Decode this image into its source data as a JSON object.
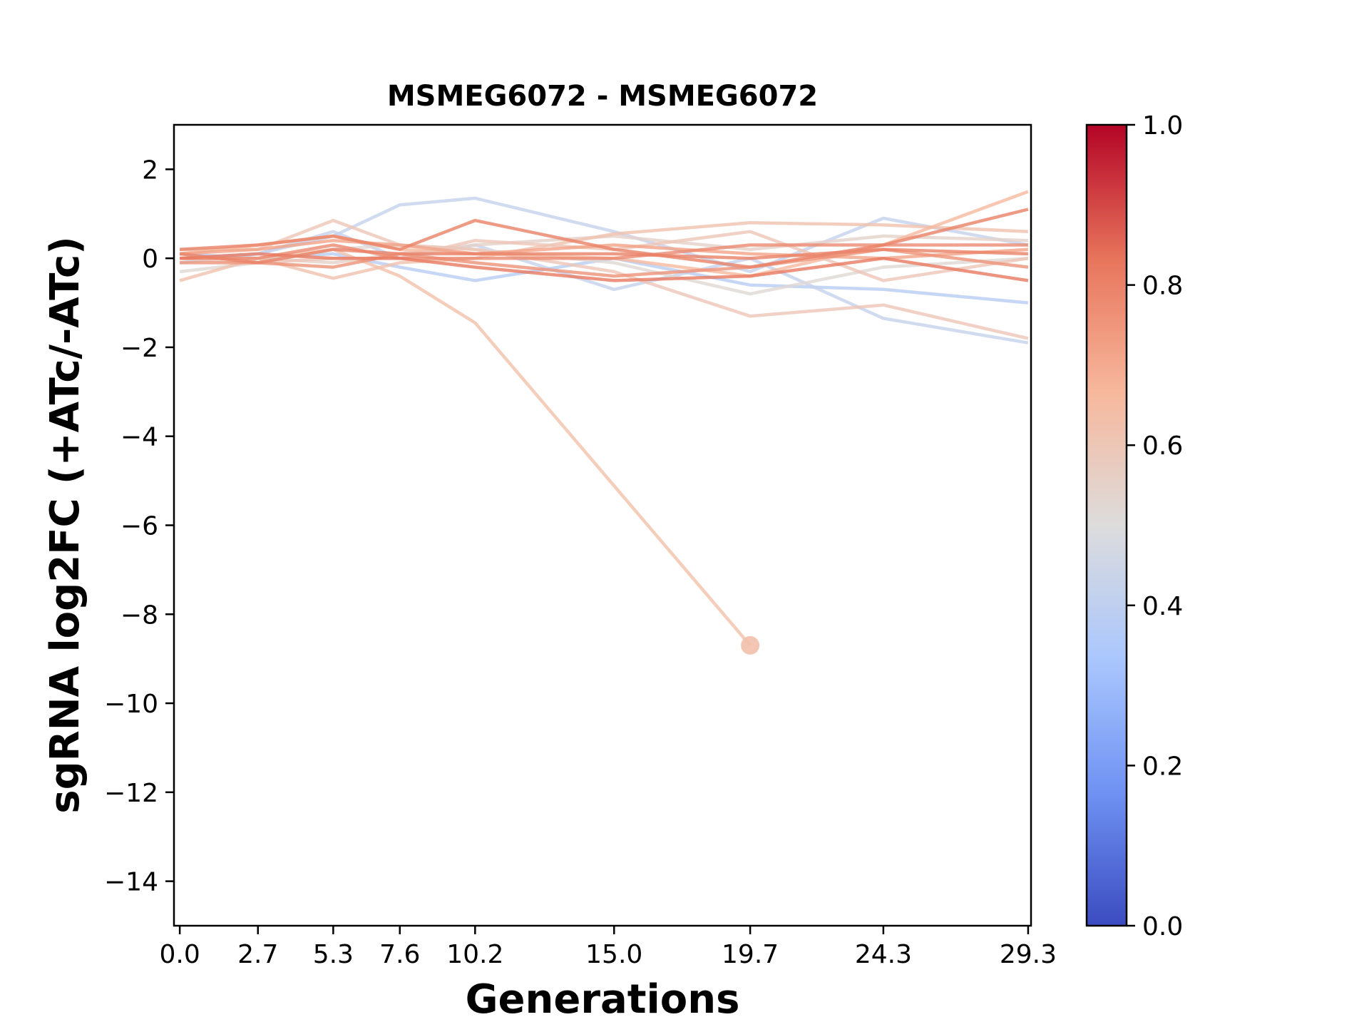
{
  "chart_data": {
    "type": "line",
    "title": "MSMEG6072 - MSMEG6072",
    "xlabel": "Generations",
    "ylabel": "sgRNA log2FC (+ATc/-ATc)",
    "x": [
      0.0,
      2.7,
      5.3,
      7.6,
      10.2,
      15.0,
      19.7,
      24.3,
      29.3
    ],
    "x_tick_labels": [
      "0.0",
      "2.7",
      "5.3",
      "7.6",
      "10.2",
      "15.0",
      "19.7",
      "24.3",
      "29.3"
    ],
    "xlim": [
      -0.2,
      29.4
    ],
    "ylim": [
      -15,
      3
    ],
    "y_ticks": [
      2,
      0,
      -2,
      -4,
      -6,
      -8,
      -10,
      -12,
      -14
    ],
    "y_tick_labels": [
      "2",
      "0",
      "−2",
      "−4",
      "−6",
      "−8",
      "−10",
      "−12",
      "−14"
    ],
    "grid": false,
    "colorbar": {
      "range": [
        0.0,
        1.0
      ],
      "ticks": [
        0.0,
        0.2,
        0.4,
        0.6,
        0.8,
        1.0
      ],
      "tick_labels": [
        "0.0",
        "0.2",
        "0.4",
        "0.6",
        "0.8",
        "1.0"
      ],
      "colormap": "coolwarm",
      "stops": [
        "#3b4cc0",
        "#6f92f3",
        "#aac7fd",
        "#dddcdc",
        "#f7b89c",
        "#e7745b",
        "#b40426"
      ]
    },
    "series": [
      {
        "color_value": 0.42,
        "values": [
          0.0,
          0.1,
          0.5,
          1.2,
          1.35,
          0.6,
          -0.3,
          0.9,
          0.3
        ]
      },
      {
        "color_value": 0.38,
        "values": [
          0.1,
          0.0,
          0.1,
          -0.2,
          -0.5,
          0.0,
          -0.6,
          -0.7,
          -1.0
        ]
      },
      {
        "color_value": 0.42,
        "values": [
          -0.1,
          0.1,
          0.6,
          0.0,
          0.3,
          -0.7,
          0.0,
          -1.35,
          -1.9
        ]
      },
      {
        "color_value": 0.52,
        "values": [
          -0.3,
          -0.1,
          0.2,
          0.3,
          0.2,
          -0.1,
          -0.8,
          -0.2,
          0.0
        ]
      },
      {
        "color_value": 0.55,
        "values": [
          0.0,
          0.0,
          -0.1,
          0.1,
          0.3,
          0.5,
          0.2,
          0.5,
          0.4
        ]
      },
      {
        "color_value": 0.6,
        "values": [
          0.2,
          0.2,
          0.85,
          0.3,
          0.2,
          -0.3,
          -1.3,
          -1.05,
          -1.8
        ]
      },
      {
        "color_value": 0.62,
        "values": [
          -0.5,
          0.0,
          -0.45,
          -0.1,
          0.0,
          0.55,
          0.8,
          0.75,
          0.6
        ]
      },
      {
        "color_value": 0.63,
        "values": [
          0.0,
          0.0,
          0.2,
          -0.4,
          -1.45,
          null,
          -8.7,
          null,
          null
        ]
      },
      {
        "color_value": 0.66,
        "values": [
          0.1,
          0.3,
          0.5,
          0.2,
          0.1,
          0.0,
          -0.4,
          0.3,
          1.5
        ]
      },
      {
        "color_value": 0.6,
        "values": [
          0.0,
          -0.1,
          0.0,
          0.0,
          0.4,
          0.2,
          0.6,
          -0.5,
          0.0
        ]
      },
      {
        "color_value": 0.72,
        "values": [
          0.1,
          0.2,
          0.4,
          0.3,
          0.1,
          0.3,
          0.1,
          0.0,
          0.2
        ]
      },
      {
        "color_value": 0.76,
        "values": [
          -0.1,
          -0.1,
          -0.2,
          0.1,
          -0.1,
          -0.4,
          -0.2,
          0.2,
          -0.2
        ]
      },
      {
        "color_value": 0.78,
        "values": [
          0.0,
          0.0,
          0.3,
          0.0,
          0.0,
          0.0,
          0.3,
          0.3,
          0.3
        ]
      },
      {
        "color_value": 0.8,
        "values": [
          0.2,
          0.3,
          0.5,
          0.2,
          0.85,
          0.2,
          -0.2,
          0.3,
          1.1
        ]
      },
      {
        "color_value": 0.82,
        "values": [
          0.0,
          0.1,
          0.0,
          0.0,
          -0.2,
          -0.5,
          -0.4,
          0.0,
          -0.5
        ]
      },
      {
        "color_value": 0.8,
        "values": [
          0.1,
          -0.1,
          0.2,
          0.1,
          0.1,
          0.1,
          0.0,
          0.2,
          0.1
        ]
      }
    ]
  }
}
